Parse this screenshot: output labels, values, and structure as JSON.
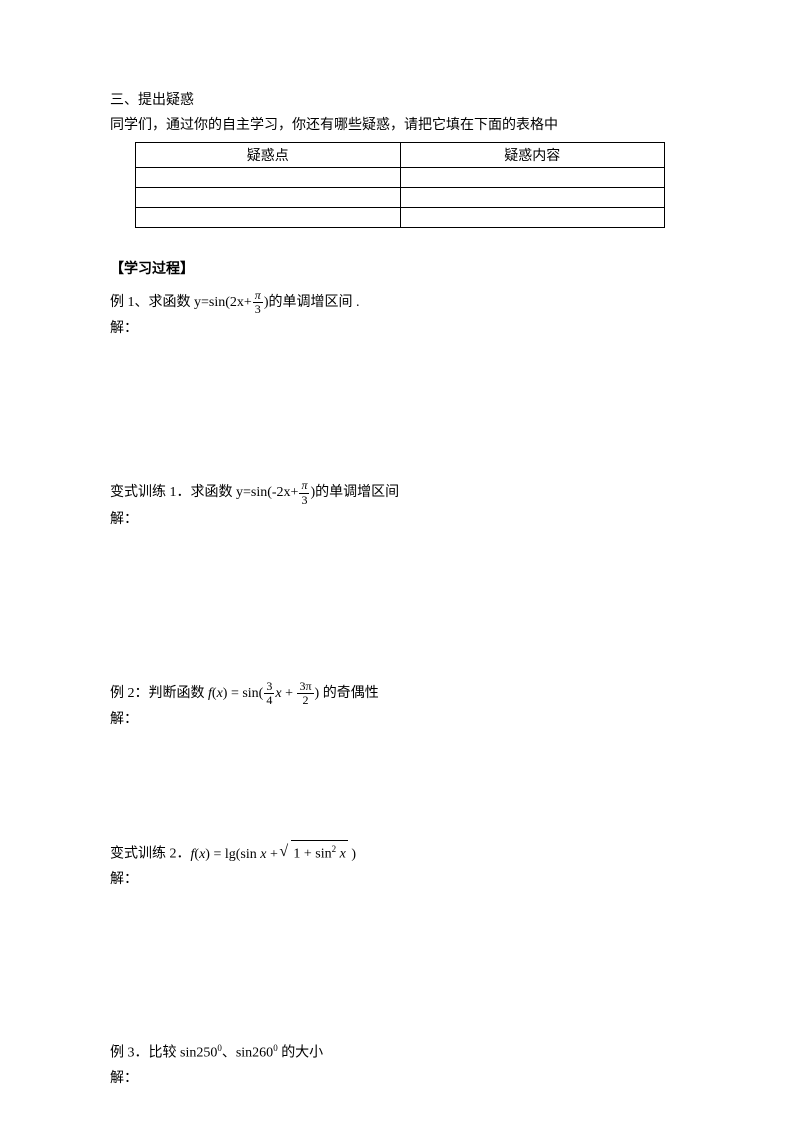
{
  "section3": {
    "heading": "三、提出疑惑",
    "intro": "同学们，通过你的自主学习，你还有哪些疑惑，请把它填在下面的表格中",
    "table": {
      "header_point": "疑惑点",
      "header_content": "疑惑内容"
    }
  },
  "learning_process": {
    "heading": "【学习过程】"
  },
  "example1": {
    "prefix": "例 1、求函数 y=sin(2x+",
    "frac_num": "π",
    "frac_den": "3",
    "suffix": ")的单调增区间 .",
    "solution_label": "解："
  },
  "variant1": {
    "prefix": "变式训练 1．求函数 y=sin(-2x+",
    "frac_num": "π",
    "frac_den": "3",
    "suffix": ")的单调增区间",
    "solution_label": "解："
  },
  "example2": {
    "prefix": "例 2：判断函数 ",
    "fx": "f",
    "x_open": "(",
    "x_var": "x",
    "x_close": ")",
    "equals": " = sin(",
    "frac1_num": "3",
    "frac1_den": "4",
    "middle": "x",
    "plus": " + ",
    "frac2_num": "3π",
    "frac2_den": "2",
    "close": ")",
    "suffix": " 的奇偶性",
    "solution_label": "解："
  },
  "variant2": {
    "prefix": "变式训练 2．",
    "fx": "f",
    "x_open": "(",
    "x_var": "x",
    "x_close": ")",
    "equals": " = lg(sin ",
    "x2": "x",
    "plus": " + ",
    "sqrt_content_1": "1 + sin",
    "sqrt_sup": "2",
    "sqrt_content_2": " x",
    "close": " )",
    "solution_label": "解："
  },
  "example3": {
    "prefix": "例 3．比较 sin250",
    "sup1": "0",
    "middle": "、sin260",
    "sup2": "0",
    "suffix": " 的大小",
    "solution_label": "解："
  }
}
